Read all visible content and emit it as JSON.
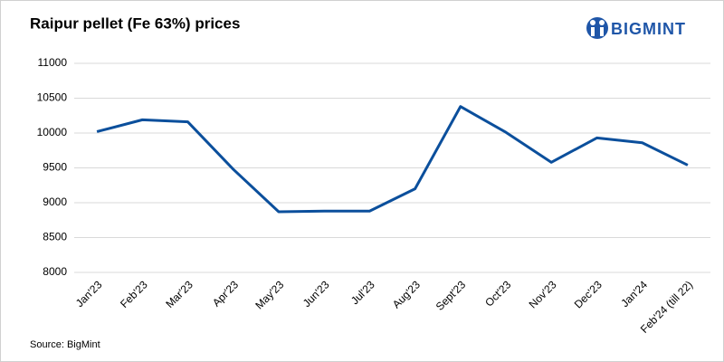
{
  "chart_data": {
    "type": "line",
    "title": "Raipur pellet (Fe 63%) prices",
    "source": "Source: BigMint",
    "logo": "BIGMINT",
    "categories": [
      "Jan'23",
      "Feb'23",
      "Mar'23",
      "Apr'23",
      "May'23",
      "Jun'23",
      "Jul'23",
      "Aug'23",
      "Sept'23",
      "Oct'23",
      "Nov'23",
      "Dec'23",
      "Jan'24",
      "Feb'24 (till 22)"
    ],
    "values": [
      10020,
      10190,
      10160,
      9480,
      8870,
      8880,
      8880,
      9200,
      10380,
      10010,
      9580,
      9930,
      9860,
      9540
    ],
    "color": "#0b4f9c",
    "ylim": [
      8000,
      11000
    ],
    "yticks": [
      8000,
      8500,
      9000,
      9500,
      10000,
      10500,
      11000
    ],
    "grid": true
  }
}
